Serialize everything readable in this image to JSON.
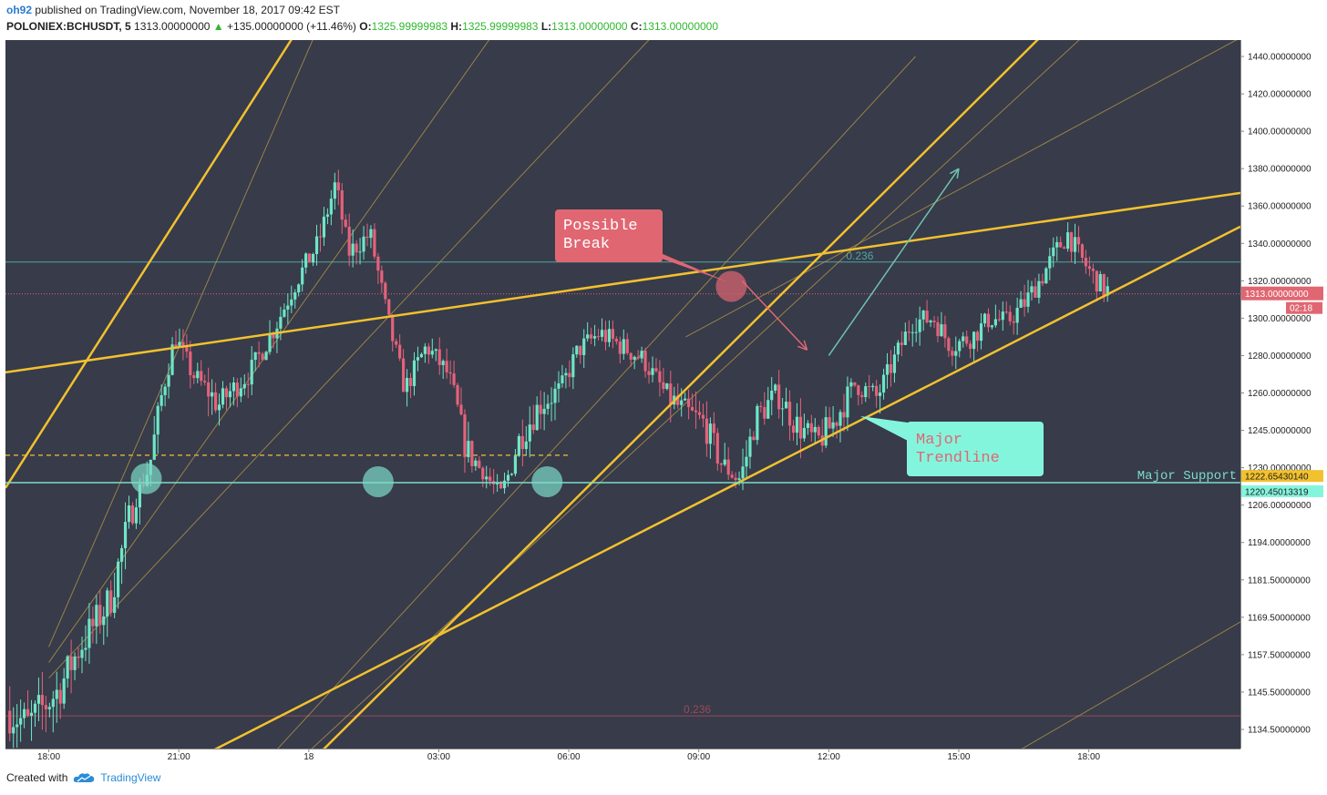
{
  "header": {
    "user": "oh92",
    "published_text": "published on TradingView.com, November 18, 2017 09:42 EST",
    "symbol": "POLONIEX:BCHUSDT, 5",
    "last": "1313.00000000",
    "change_arrow": "▲",
    "change": "+135.00000000 (+11.46%)",
    "o_label": "O:",
    "o_value": "1325.99999983",
    "h_label": "H:",
    "h_value": "1325.99999983",
    "l_label": "L:",
    "l_value": "1313.00000000",
    "c_label": "C:",
    "c_value": "1313.00000000"
  },
  "footer": {
    "created_with": "Created with",
    "brand": "TradingView",
    "logo_icon": "tradingview-cloud-icon"
  },
  "colors": {
    "background": "#373b4a",
    "up_candle": "#6ee6c6",
    "down_candle": "#e5627a",
    "trendline": "#f2c12e",
    "support_line": "#7ddcc8",
    "fib_line": "#4fa7a0",
    "price_marker": "#e06772",
    "callout_red": "#e06772",
    "callout_teal": "#84f5dd"
  },
  "chart_data": {
    "type": "candlestick",
    "title": "",
    "xlabel": "",
    "ylabel": "",
    "x_ticks": [
      "18:00",
      "21:00",
      "18",
      "03:00",
      "06:00",
      "09:00",
      "12:00",
      "15:00",
      "18:00"
    ],
    "y_ticks": [
      "1440.00000000",
      "1420.00000000",
      "1400.00000000",
      "1380.00000000",
      "1360.00000000",
      "1340.00000000",
      "1320.00000000",
      "1300.00000000",
      "1280.00000000",
      "1260.00000000",
      "1245.00000000",
      "1230.00000000",
      "1206.00000000",
      "1194.00000000",
      "1181.50000000",
      "1169.50000000",
      "1157.50000000",
      "1145.50000000",
      "1134.50000000"
    ],
    "y_tick_values": [
      1440,
      1420,
      1400,
      1380,
      1360,
      1340,
      1320,
      1300,
      1280,
      1260,
      1245,
      1230,
      1206,
      1194,
      1181.5,
      1169.5,
      1157.5,
      1145.5,
      1134.5
    ],
    "time_range_hours": [
      -1.0,
      27.5
    ],
    "current_price": {
      "value": 1313,
      "label": "1313.00000000",
      "countdown": "02:18"
    },
    "price_badges": [
      {
        "value": 1222.6543014,
        "label": "1222.65430140",
        "color": "#f2c12e"
      },
      {
        "value": 1220.45013319,
        "label": "1220.45013319",
        "color": "#84f5dd"
      }
    ],
    "support": {
      "value": 1220.45,
      "label": "Major Support"
    },
    "dashed_level": {
      "value": 1235,
      "t_end": 9.0
    },
    "fib_levels": [
      {
        "value": 1330,
        "label": "0.236",
        "color": "#4fa7a0"
      },
      {
        "value": 1138.5,
        "label": "0.236",
        "color": "#9a4a5a"
      }
    ],
    "annotations": {
      "possible_break": {
        "line1": "Possible",
        "line2": "Break"
      },
      "major_trendline": {
        "line1": "Major",
        "line2": "Trendline"
      }
    },
    "thick_trendlines": [
      {
        "t1": -1.0,
        "v1": 1271,
        "t2": 27.5,
        "v2": 1367
      },
      {
        "t1": -1.0,
        "v1": 1217,
        "t2": 5.9,
        "v2": 1460
      },
      {
        "t1": 2.2,
        "v1": 1118,
        "t2": 27.5,
        "v2": 1349
      },
      {
        "t1": 5.5,
        "v1": 1118,
        "t2": 23.3,
        "v2": 1460
      }
    ],
    "thin_trendlines": [
      {
        "t1": 0.0,
        "v1": 1160,
        "t2": 6.3,
        "v2": 1460
      },
      {
        "t1": 0.0,
        "v1": 1155,
        "t2": 10.5,
        "v2": 1460
      },
      {
        "t1": 0.0,
        "v1": 1150,
        "t2": 14.3,
        "v2": 1460
      },
      {
        "t1": 6.0,
        "v1": 1128,
        "t2": 24.3,
        "v2": 1460
      },
      {
        "t1": 14.7,
        "v1": 1290,
        "t2": 27.5,
        "v2": 1450
      },
      {
        "t1": 4.5,
        "v1": 1118,
        "t2": 20.0,
        "v2": 1440
      },
      {
        "t1": 21.0,
        "v1": 1118,
        "t2": 27.5,
        "v2": 1168
      }
    ],
    "markers": [
      {
        "t": 2.25,
        "v": 1223,
        "color": "#7ddcc8"
      },
      {
        "t": 7.6,
        "v": 1221,
        "color": "#7ddcc8"
      },
      {
        "t": 11.5,
        "v": 1221,
        "color": "#7ddcc8"
      },
      {
        "t": 15.75,
        "v": 1317,
        "color": "#e06772"
      }
    ],
    "arrows": [
      {
        "t1": 16.0,
        "v1": 1320,
        "t2": 17.5,
        "v2": 1283,
        "color": "#e06772"
      },
      {
        "t1": 18.0,
        "v1": 1280,
        "t2": 21.0,
        "v2": 1380,
        "color": "#6fc3b0"
      }
    ],
    "path_points": [
      [
        -0.9,
        1140
      ],
      [
        -0.4,
        1136
      ],
      [
        0.3,
        1146
      ],
      [
        0.8,
        1160
      ],
      [
        1.5,
        1175
      ],
      [
        2.0,
        1205
      ],
      [
        2.4,
        1230
      ],
      [
        2.7,
        1260
      ],
      [
        3.0,
        1290
      ],
      [
        3.4,
        1270
      ],
      [
        4.0,
        1255
      ],
      [
        4.7,
        1270
      ],
      [
        5.3,
        1295
      ],
      [
        5.8,
        1320
      ],
      [
        6.3,
        1340
      ],
      [
        6.7,
        1372
      ],
      [
        7.0,
        1335
      ],
      [
        7.5,
        1345
      ],
      [
        7.9,
        1300
      ],
      [
        8.3,
        1262
      ],
      [
        8.8,
        1285
      ],
      [
        9.3,
        1270
      ],
      [
        9.7,
        1238
      ],
      [
        10.1,
        1228
      ],
      [
        10.5,
        1212
      ],
      [
        10.9,
        1240
      ],
      [
        11.4,
        1255
      ],
      [
        11.9,
        1262
      ],
      [
        12.3,
        1283
      ],
      [
        12.8,
        1292
      ],
      [
        13.3,
        1285
      ],
      [
        13.8,
        1278
      ],
      [
        14.3,
        1260
      ],
      [
        14.7,
        1253
      ],
      [
        15.2,
        1248
      ],
      [
        15.6,
        1232
      ],
      [
        16.0,
        1222
      ],
      [
        16.4,
        1250
      ],
      [
        16.9,
        1260
      ],
      [
        17.3,
        1248
      ],
      [
        17.8,
        1240
      ],
      [
        18.2,
        1248
      ],
      [
        18.7,
        1265
      ],
      [
        19.2,
        1258
      ],
      [
        19.6,
        1278
      ],
      [
        20.0,
        1298
      ],
      [
        20.5,
        1300
      ],
      [
        20.9,
        1285
      ],
      [
        21.4,
        1290
      ],
      [
        21.8,
        1300
      ],
      [
        22.2,
        1298
      ],
      [
        22.6,
        1308
      ],
      [
        23.0,
        1322
      ],
      [
        23.3,
        1335
      ],
      [
        23.6,
        1345
      ],
      [
        23.9,
        1332
      ],
      [
        24.2,
        1322
      ],
      [
        24.45,
        1315
      ]
    ]
  }
}
